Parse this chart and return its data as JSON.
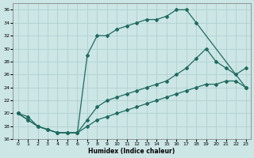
{
  "xlabel": "Humidex (Indice chaleur)",
  "xlim": [
    -0.5,
    23.5
  ],
  "ylim": [
    16,
    37
  ],
  "yticks": [
    16,
    18,
    20,
    22,
    24,
    26,
    28,
    30,
    32,
    34,
    36
  ],
  "xticks": [
    0,
    1,
    2,
    3,
    4,
    5,
    6,
    7,
    8,
    9,
    10,
    11,
    12,
    13,
    14,
    15,
    16,
    17,
    18,
    19,
    20,
    21,
    22,
    23
  ],
  "bg_color": "#cce5e5",
  "grid_color": "#b0d0d0",
  "line_color": "#1e6b5e",
  "curve1_x": [
    0,
    1,
    2,
    3,
    4,
    5,
    6,
    7,
    8,
    9,
    10,
    11,
    12,
    13,
    14,
    15,
    16,
    17,
    18,
    23
  ],
  "curve1_y": [
    20,
    19,
    18,
    17.5,
    17,
    17,
    17,
    29,
    32,
    32,
    33,
    33.5,
    34,
    34.5,
    34.5,
    35,
    36,
    36,
    34,
    24
  ],
  "curve2_x": [
    0,
    1,
    2,
    3,
    4,
    5,
    6,
    7,
    8,
    9,
    10,
    11,
    12,
    13,
    14,
    15,
    16,
    17,
    18,
    19,
    20,
    21,
    22,
    23
  ],
  "curve2_y": [
    20,
    19,
    18,
    17.5,
    17,
    17,
    17,
    19,
    21,
    22,
    22.5,
    23,
    23.5,
    24,
    24.5,
    25,
    26,
    27,
    28.5,
    30,
    28,
    27,
    26,
    27
  ],
  "curve3_x": [
    0,
    1,
    2,
    3,
    4,
    5,
    6,
    7,
    8,
    9,
    10,
    11,
    12,
    13,
    14,
    15,
    16,
    17,
    18,
    19,
    20,
    21,
    22,
    23
  ],
  "curve3_y": [
    20,
    19.5,
    18,
    17.5,
    17,
    17,
    17,
    18,
    19,
    19.5,
    20,
    20.5,
    21,
    21.5,
    22,
    22.5,
    23,
    23.5,
    24,
    24.5,
    24.5,
    25,
    25,
    24
  ]
}
